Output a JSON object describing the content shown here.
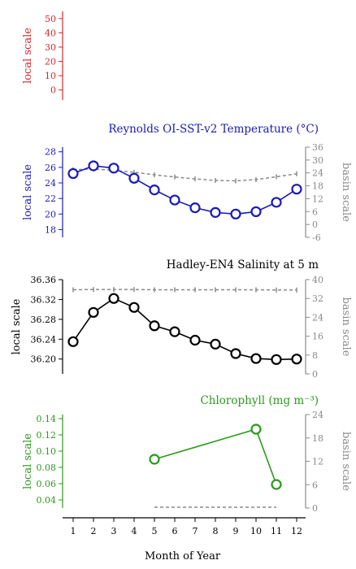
{
  "figure": {
    "xlabel": "Month of Year",
    "xticks": [
      1,
      2,
      3,
      4,
      5,
      6,
      7,
      8,
      9,
      10,
      11,
      12
    ]
  },
  "chart_data": [
    {
      "type": "line",
      "title": "",
      "ylabel": "local scale",
      "color": "#d62728",
      "ylim": [
        -7,
        55
      ],
      "yticks": [
        0,
        10,
        20,
        30,
        40,
        50
      ],
      "series": [
        {
          "x": [],
          "values": []
        }
      ]
    },
    {
      "type": "line",
      "title": "Reynolds OI-SST-v2 Temperature (°C)",
      "ylabel": "local scale",
      "ylabel_right": "basin scale",
      "color": "#1a1ab8",
      "ylim": [
        17,
        28.6
      ],
      "yticks": [
        18,
        20,
        22,
        24,
        26,
        28
      ],
      "yticks_right": [
        -6,
        0,
        6,
        12,
        18,
        24,
        30,
        36
      ],
      "ylim_right": [
        -6,
        36
      ],
      "series": [
        {
          "x": [
            1,
            2,
            3,
            4,
            5,
            6,
            7,
            8,
            9,
            10,
            11,
            12
          ],
          "values": [
            25.2,
            26.2,
            25.9,
            24.6,
            23.1,
            21.8,
            20.8,
            20.2,
            20.0,
            20.3,
            21.5,
            23.2
          ]
        }
      ],
      "basin_series": [
        {
          "x": [
            1,
            2,
            3,
            4,
            5,
            6,
            7,
            8,
            9,
            10,
            11,
            12
          ],
          "values": [
            25.5,
            25.8,
            25.2,
            24.3,
            23.1,
            22.1,
            21.2,
            20.5,
            20.3,
            20.9,
            22.2,
            23.6
          ]
        }
      ]
    },
    {
      "type": "line",
      "title": "Hadley-EN4 Salinity at 5 m",
      "ylabel": "local scale",
      "ylabel_right": "basin scale",
      "color": "#000000",
      "ylim": [
        36.17,
        36.36
      ],
      "yticks": [
        36.2,
        36.24,
        36.28,
        36.32,
        36.36
      ],
      "ytick_labels": [
        "36.20",
        "36.24",
        "36.28",
        "36.32",
        "36.36"
      ],
      "yticks_right": [
        0,
        8,
        16,
        24,
        32,
        40
      ],
      "ylim_right": [
        0,
        40
      ],
      "series": [
        {
          "x": [
            1,
            2,
            3,
            4,
            5,
            6,
            7,
            8,
            9,
            10,
            11,
            12
          ],
          "values": [
            36.235,
            36.294,
            36.322,
            36.304,
            36.267,
            36.255,
            36.238,
            36.23,
            36.211,
            36.201,
            36.199,
            36.2
          ]
        }
      ],
      "basin_series": [
        {
          "x": [
            1,
            2,
            3,
            4,
            5,
            6,
            7,
            8,
            9,
            10,
            11,
            12
          ],
          "values": [
            35.7,
            35.8,
            35.8,
            35.8,
            35.7,
            35.7,
            35.7,
            35.7,
            35.7,
            35.7,
            35.6,
            35.6
          ]
        }
      ]
    },
    {
      "type": "line",
      "title": "Chlorophyll (mg m⁻³)",
      "ylabel": "local scale",
      "ylabel_right": "basin scale",
      "color": "#2a9a1a",
      "ylim": [
        0.03,
        0.145
      ],
      "yticks": [
        0.04,
        0.06,
        0.08,
        0.1,
        0.12,
        0.14
      ],
      "ytick_labels": [
        "0.04",
        "0.06",
        "0.08",
        "0.10",
        "0.12",
        "0.14"
      ],
      "yticks_right": [
        0,
        6,
        12,
        18,
        24
      ],
      "ylim_right": [
        0,
        24
      ],
      "series": [
        {
          "x": [
            5,
            10,
            11
          ],
          "values": [
            0.09,
            0.127,
            0.059
          ]
        }
      ],
      "basin_series": [
        {
          "x": [
            5,
            6,
            7,
            8,
            9,
            10,
            11
          ],
          "values": [
            0.2,
            0.2,
            0.2,
            0.2,
            0.2,
            0.2,
            0.2
          ]
        }
      ]
    }
  ]
}
